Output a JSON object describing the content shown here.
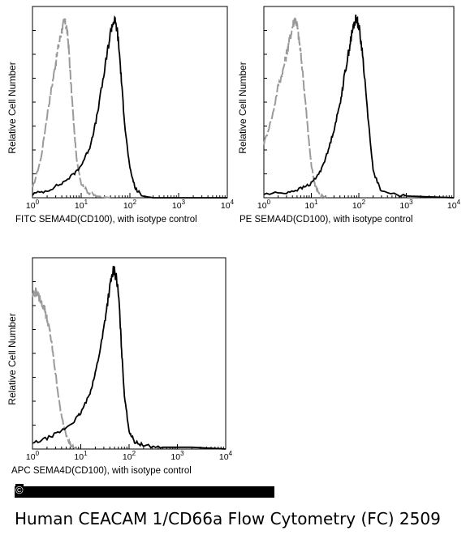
{
  "chart_data": [
    {
      "type": "line",
      "ylabel": "Relative Cell Number",
      "xlabel": "FITC  SEMA4D(CD100),  with isotype control",
      "x_scale": "log",
      "xlim": [
        1,
        10000
      ],
      "x_ticks": [
        "10",
        "10",
        "10",
        "10",
        "10"
      ],
      "x_tick_exps": [
        "0",
        "1",
        "2",
        "3",
        "4"
      ],
      "series": [
        {
          "style": "dashed",
          "color": "#9a9a9a",
          "x": [
            1,
            1.5,
            2,
            2.5,
            3,
            3.5,
            4,
            4.5,
            5,
            5.5,
            6,
            7,
            8,
            10,
            14,
            20,
            40
          ],
          "y": [
            0.05,
            0.22,
            0.46,
            0.62,
            0.75,
            0.86,
            0.93,
            0.98,
            0.95,
            0.85,
            0.68,
            0.42,
            0.22,
            0.08,
            0.03,
            0.01,
            0.0
          ]
        },
        {
          "style": "solid",
          "color": "#000000",
          "x": [
            1,
            2,
            4,
            7,
            10,
            15,
            20,
            28,
            35,
            42,
            48,
            55,
            62,
            70,
            80,
            100,
            130,
            180,
            300,
            1000,
            10000
          ],
          "y": [
            0.02,
            0.04,
            0.08,
            0.13,
            0.18,
            0.28,
            0.42,
            0.65,
            0.82,
            0.95,
            0.99,
            0.93,
            0.78,
            0.58,
            0.38,
            0.16,
            0.05,
            0.01,
            0.0,
            0.0,
            0.0
          ]
        }
      ]
    },
    {
      "type": "line",
      "ylabel": "Relative Cell Number",
      "xlabel": "PE SEMA4D(CD100), with isotype control",
      "x_scale": "log",
      "xlim": [
        1,
        10000
      ],
      "x_ticks": [
        "10",
        "10",
        "10",
        "10",
        "10"
      ],
      "x_tick_exps": [
        "0",
        "1",
        "2",
        "3",
        "4"
      ],
      "series": [
        {
          "style": "dashed",
          "color": "#9a9a9a",
          "x": [
            1,
            1.5,
            2,
            2.5,
            3,
            3.5,
            4,
            4.5,
            5,
            5.5,
            6,
            7,
            8,
            9,
            10,
            12,
            15,
            20
          ],
          "y": [
            0.3,
            0.45,
            0.62,
            0.7,
            0.8,
            0.88,
            0.95,
            1.0,
            0.96,
            0.88,
            0.8,
            0.62,
            0.45,
            0.3,
            0.18,
            0.07,
            0.02,
            0.0
          ]
        },
        {
          "style": "solid",
          "color": "#000000",
          "x": [
            1,
            3,
            6,
            10,
            15,
            22,
            30,
            40,
            50,
            60,
            70,
            80,
            90,
            100,
            120,
            150,
            200,
            300,
            1000,
            10000
          ],
          "y": [
            0.02,
            0.03,
            0.05,
            0.08,
            0.14,
            0.25,
            0.38,
            0.52,
            0.68,
            0.8,
            0.9,
            0.97,
            1.0,
            0.95,
            0.8,
            0.5,
            0.15,
            0.03,
            0.01,
            0.0
          ]
        }
      ]
    },
    {
      "type": "line",
      "ylabel": "Relative Cell Number",
      "xlabel": "APC SEMA4D(CD100), with isotype control",
      "x_scale": "log",
      "xlim": [
        1,
        10000
      ],
      "x_ticks": [
        "10",
        "10",
        "10",
        "10",
        "10"
      ],
      "x_tick_exps": [
        "0",
        "1",
        "2",
        "3",
        "4"
      ],
      "series": [
        {
          "style": "dashed",
          "color": "#9a9a9a",
          "x": [
            1,
            1.2,
            1.5,
            1.8,
            2,
            2.3,
            2.6,
            3,
            3.5,
            4,
            5,
            6,
            7,
            8
          ],
          "y": [
            0.85,
            0.88,
            0.82,
            0.78,
            0.72,
            0.65,
            0.55,
            0.42,
            0.28,
            0.18,
            0.08,
            0.03,
            0.01,
            0.0
          ]
        },
        {
          "style": "solid",
          "color": "#000000",
          "x": [
            1,
            2,
            4,
            7,
            10,
            15,
            20,
            28,
            35,
            42,
            48,
            55,
            62,
            70,
            80,
            100,
            130,
            200,
            500,
            2000,
            10000
          ],
          "y": [
            0.03,
            0.06,
            0.1,
            0.15,
            0.2,
            0.3,
            0.42,
            0.62,
            0.8,
            0.93,
            1.0,
            0.95,
            0.82,
            0.55,
            0.3,
            0.1,
            0.04,
            0.02,
            0.01,
            0.01,
            0.0
          ]
        }
      ]
    }
  ],
  "copyright_symbol": "©",
  "caption": "Human CEACAM 1/CD66a Flow Cytometry (FC) 2509"
}
